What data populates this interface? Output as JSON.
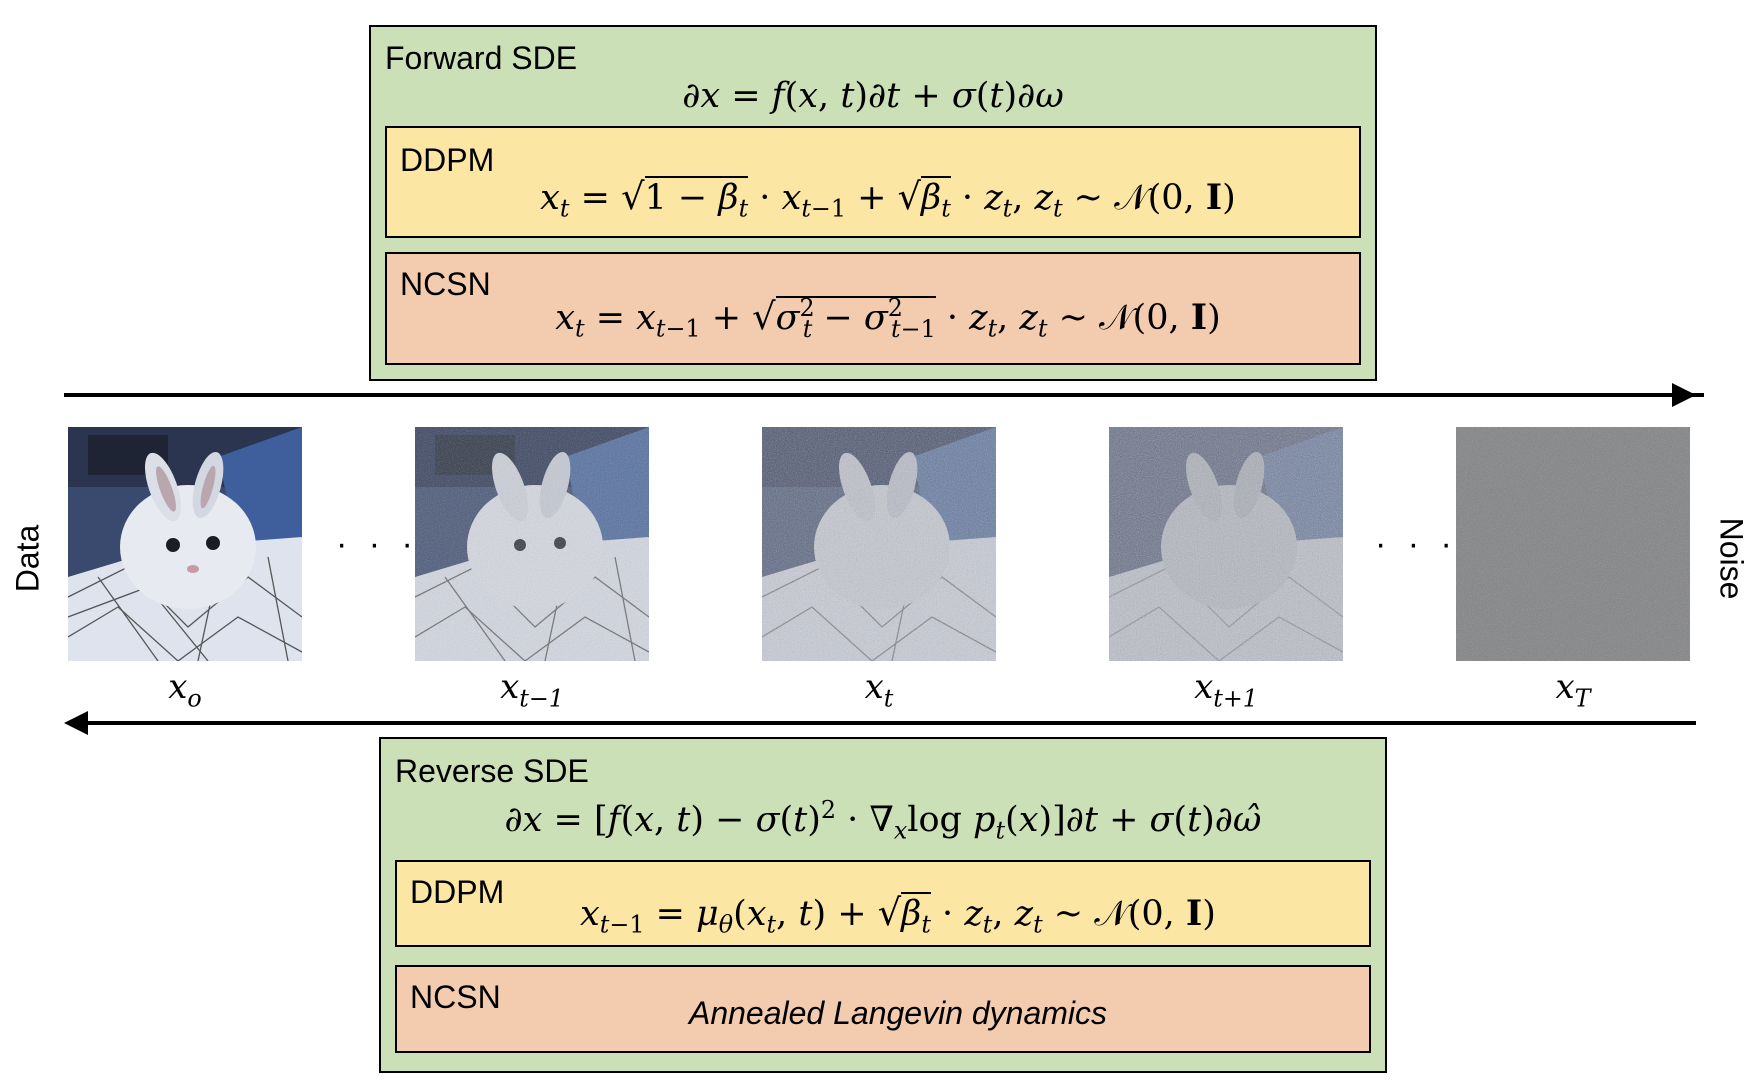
{
  "forward": {
    "title": "Forward SDE",
    "ddpm_title": "DDPM",
    "ncsn_title": "NCSN"
  },
  "reverse": {
    "title": "Reverse SDE",
    "ddpm_title": "DDPM",
    "ncsn_title": "NCSN",
    "ncsn_text": "Annealed Langevin dynamics"
  },
  "sides": {
    "left": "Data",
    "right": "Noise"
  },
  "ellipsis": "· · ·",
  "colors": {
    "outer_box": "#cce0b8",
    "ddpm_box": "#fbe6a4",
    "ncsn_box": "#f3ccb0"
  },
  "images": [
    {
      "label_base": "x",
      "label_sub": "o",
      "noise_level": 0.0
    },
    {
      "label_base": "x",
      "label_sub": "t−1",
      "noise_level": 0.35
    },
    {
      "label_base": "x",
      "label_sub": "t",
      "noise_level": 0.55
    },
    {
      "label_base": "x",
      "label_sub": "t+1",
      "noise_level": 0.7
    },
    {
      "label_base": "x",
      "label_sub": "T",
      "noise_level": 1.0
    }
  ]
}
